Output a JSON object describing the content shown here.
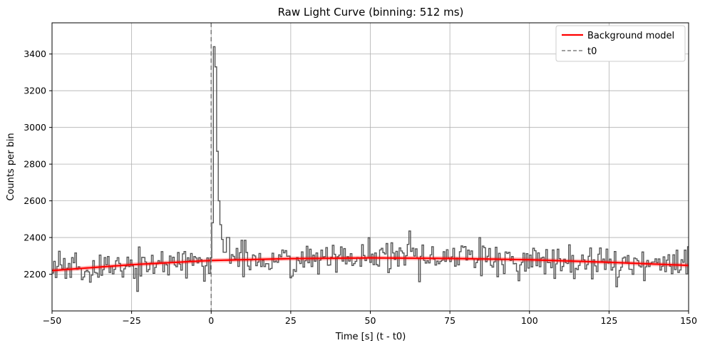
{
  "chart_data": {
    "type": "line",
    "title": "Raw Light Curve (binning: 512 ms)",
    "xlabel": "Time [s] (t - t0)",
    "ylabel": "Counts per bin",
    "xlim": [
      -50,
      150
    ],
    "ylim": [
      2000,
      3570
    ],
    "grid": true,
    "xticks": [
      -50,
      -25,
      0,
      25,
      50,
      75,
      100,
      125,
      150
    ],
    "xtick_labels": [
      "−50",
      "−25",
      "0",
      "25",
      "50",
      "75",
      "100",
      "125",
      "150"
    ],
    "yticks": [
      2200,
      2400,
      2600,
      2800,
      3000,
      3200,
      3400
    ],
    "ytick_labels": [
      "2200",
      "2400",
      "2600",
      "2800",
      "3000",
      "3200",
      "3400"
    ],
    "legend": {
      "position": "top-right",
      "entries": [
        {
          "label": "Background model",
          "style": "solid",
          "color": "#ff0000"
        },
        {
          "label": "t0",
          "style": "dashed",
          "color": "#808080"
        }
      ]
    },
    "series": [
      {
        "name": "Raw light curve",
        "style": "step",
        "color": "#555555",
        "bin_width": 0.512,
        "x_start": -50,
        "noise_seed": 7,
        "noise_amplitude": 45,
        "burst": [
          {
            "t": -0.5,
            "value": 2290
          },
          {
            "t": 0.0,
            "value": 2480
          },
          {
            "t": 0.5,
            "value": 3440
          },
          {
            "t": 1.0,
            "value": 3330
          },
          {
            "t": 1.5,
            "value": 2870
          },
          {
            "t": 2.0,
            "value": 2600
          },
          {
            "t": 2.5,
            "value": 2470
          },
          {
            "t": 3.0,
            "value": 2390
          },
          {
            "t": 3.5,
            "value": 2330
          },
          {
            "t": 4.0,
            "value": 2320
          },
          {
            "t": 5.0,
            "value": 2400
          }
        ]
      },
      {
        "name": "Background model",
        "style": "line",
        "color": "#ff0000",
        "x": [
          -50,
          -25,
          0,
          25,
          50,
          75,
          100,
          125,
          150
        ],
        "values": [
          2220,
          2252,
          2275,
          2285,
          2289,
          2286,
          2279,
          2265,
          2248
        ]
      },
      {
        "name": "t0",
        "style": "vline",
        "color": "#808080",
        "x": 0
      }
    ]
  }
}
